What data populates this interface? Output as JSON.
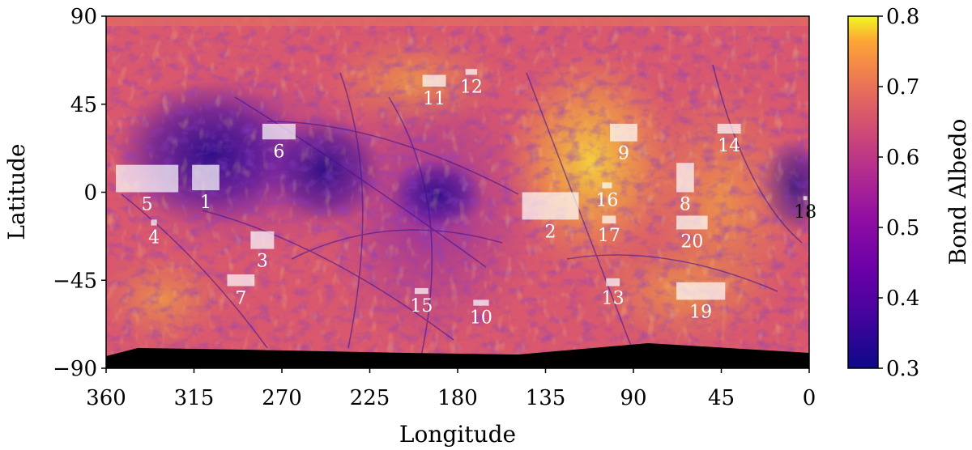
{
  "chart_data": {
    "type": "heatmap",
    "title": "",
    "xlabel": "Longitude",
    "ylabel": "Latitude",
    "xlim": [
      360,
      0
    ],
    "ylim": [
      -90,
      90
    ],
    "xticks": [
      "360",
      "315",
      "270",
      "225",
      "180",
      "135",
      "90",
      "45",
      "0"
    ],
    "yticks": [
      "90",
      "45",
      "0",
      "−45",
      "−90"
    ],
    "colorbar": {
      "label": "Bond Albedo",
      "colormap": "plasma",
      "range": [
        0.3,
        0.8
      ],
      "ticks": [
        "0.3",
        "0.4",
        "0.5",
        "0.6",
        "0.7",
        "0.8"
      ]
    },
    "colors": {
      "low": "#1f0c78",
      "mid_low": "#7a1fa8",
      "mid": "#c4457e",
      "mid_high": "#e77a4f",
      "high": "#f9c93a",
      "top": "#f0f921",
      "no_data": "#000000",
      "region_box": "#ffffff"
    },
    "regions": [
      {
        "label": "1",
        "lon": [
          316,
          302
        ],
        "lat": [
          1,
          14
        ]
      },
      {
        "label": "2",
        "lon": [
          147,
          118
        ],
        "lat": [
          -14,
          0
        ]
      },
      {
        "label": "3",
        "lon": [
          286,
          274
        ],
        "lat": [
          -29,
          -20
        ]
      },
      {
        "label": "4",
        "lon": [
          337,
          334
        ],
        "lat": [
          -17,
          -14
        ]
      },
      {
        "label": "5",
        "lon": [
          355,
          323
        ],
        "lat": [
          0,
          14
        ]
      },
      {
        "label": "6",
        "lon": [
          280,
          263
        ],
        "lat": [
          27,
          35
        ]
      },
      {
        "label": "7",
        "lon": [
          298,
          284
        ],
        "lat": [
          -48,
          -42
        ]
      },
      {
        "label": "8",
        "lon": [
          68,
          59
        ],
        "lat": [
          0,
          15
        ]
      },
      {
        "label": "9",
        "lon": [
          102,
          88
        ],
        "lat": [
          26,
          35
        ]
      },
      {
        "label": "10",
        "lon": [
          172,
          164
        ],
        "lat": [
          -58,
          -55
        ]
      },
      {
        "label": "11",
        "lon": [
          198,
          186
        ],
        "lat": [
          54,
          60
        ]
      },
      {
        "label": "12",
        "lon": [
          176,
          170
        ],
        "lat": [
          60,
          63
        ]
      },
      {
        "label": "13",
        "lon": [
          104,
          97
        ],
        "lat": [
          -48,
          -44
        ]
      },
      {
        "label": "14",
        "lon": [
          47,
          35
        ],
        "lat": [
          30,
          35
        ]
      },
      {
        "label": "15",
        "lon": [
          202,
          195
        ],
        "lat": [
          -52,
          -49
        ]
      },
      {
        "label": "16",
        "lon": [
          106,
          101
        ],
        "lat": [
          2,
          5
        ]
      },
      {
        "label": "17",
        "lon": [
          106,
          99
        ],
        "lat": [
          -16,
          -12
        ]
      },
      {
        "label": "18",
        "lon": [
          3,
          1
        ],
        "lat": [
          -4,
          -2
        ]
      },
      {
        "label": "19",
        "lon": [
          68,
          43
        ],
        "lat": [
          -55,
          -46
        ]
      },
      {
        "label": "20",
        "lon": [
          68,
          52
        ],
        "lat": [
          -19,
          -12
        ]
      }
    ]
  }
}
